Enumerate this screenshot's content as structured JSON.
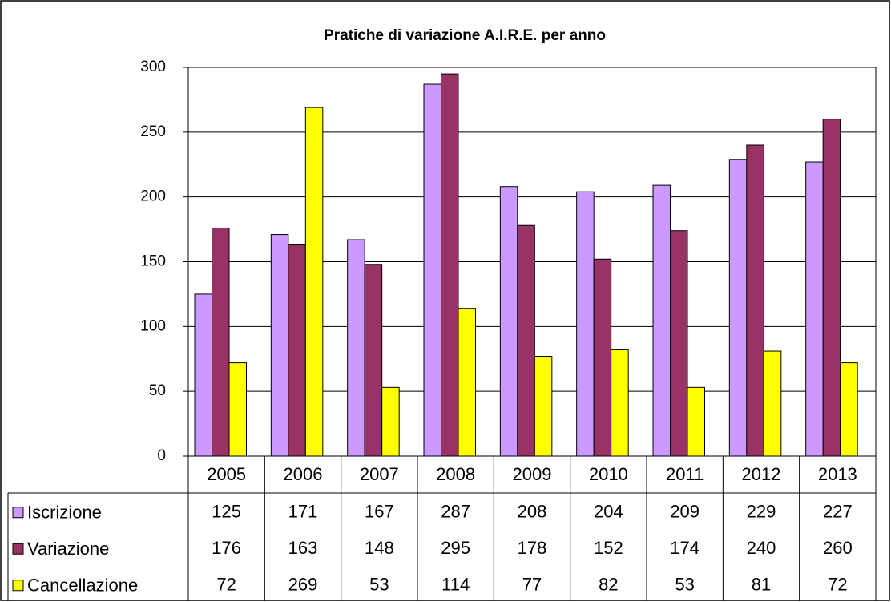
{
  "chart_data": {
    "type": "bar",
    "title": "Pratiche di variazione A.I.R.E. per anno",
    "categories": [
      "2005",
      "2006",
      "2007",
      "2008",
      "2009",
      "2010",
      "2011",
      "2012",
      "2013"
    ],
    "series": [
      {
        "name": "Iscrizione",
        "color": "#cc99ff",
        "values": [
          125,
          171,
          167,
          287,
          208,
          204,
          209,
          229,
          227
        ]
      },
      {
        "name": "Variazione",
        "color": "#993366",
        "values": [
          176,
          163,
          148,
          295,
          178,
          152,
          174,
          240,
          260
        ]
      },
      {
        "name": "Cancellazione",
        "color": "#ffff00",
        "values": [
          72,
          269,
          53,
          114,
          77,
          82,
          53,
          81,
          72
        ]
      }
    ],
    "ylim": [
      0,
      300
    ],
    "yticks": [
      0,
      50,
      100,
      150,
      200,
      250,
      300
    ],
    "grid": true,
    "data_table": true
  }
}
